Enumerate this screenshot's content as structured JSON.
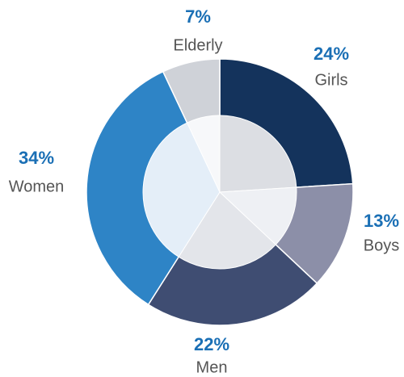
{
  "chart_data": {
    "type": "donut",
    "categories": [
      "Girls",
      "Boys",
      "Men",
      "Women",
      "Elderly"
    ],
    "values": [
      24,
      13,
      22,
      34,
      7
    ],
    "value_labels": [
      "24%",
      "13%",
      "22%",
      "34%",
      "7%"
    ],
    "colors": [
      "#14335c",
      "#8c8fa8",
      "#3f4d72",
      "#2e84c6",
      "#cfd2d8"
    ],
    "inner_colors": [
      "#dcdee3",
      "#eef0f4",
      "#e3e5ea",
      "#e4eef8",
      "#f7f8fa"
    ]
  }
}
